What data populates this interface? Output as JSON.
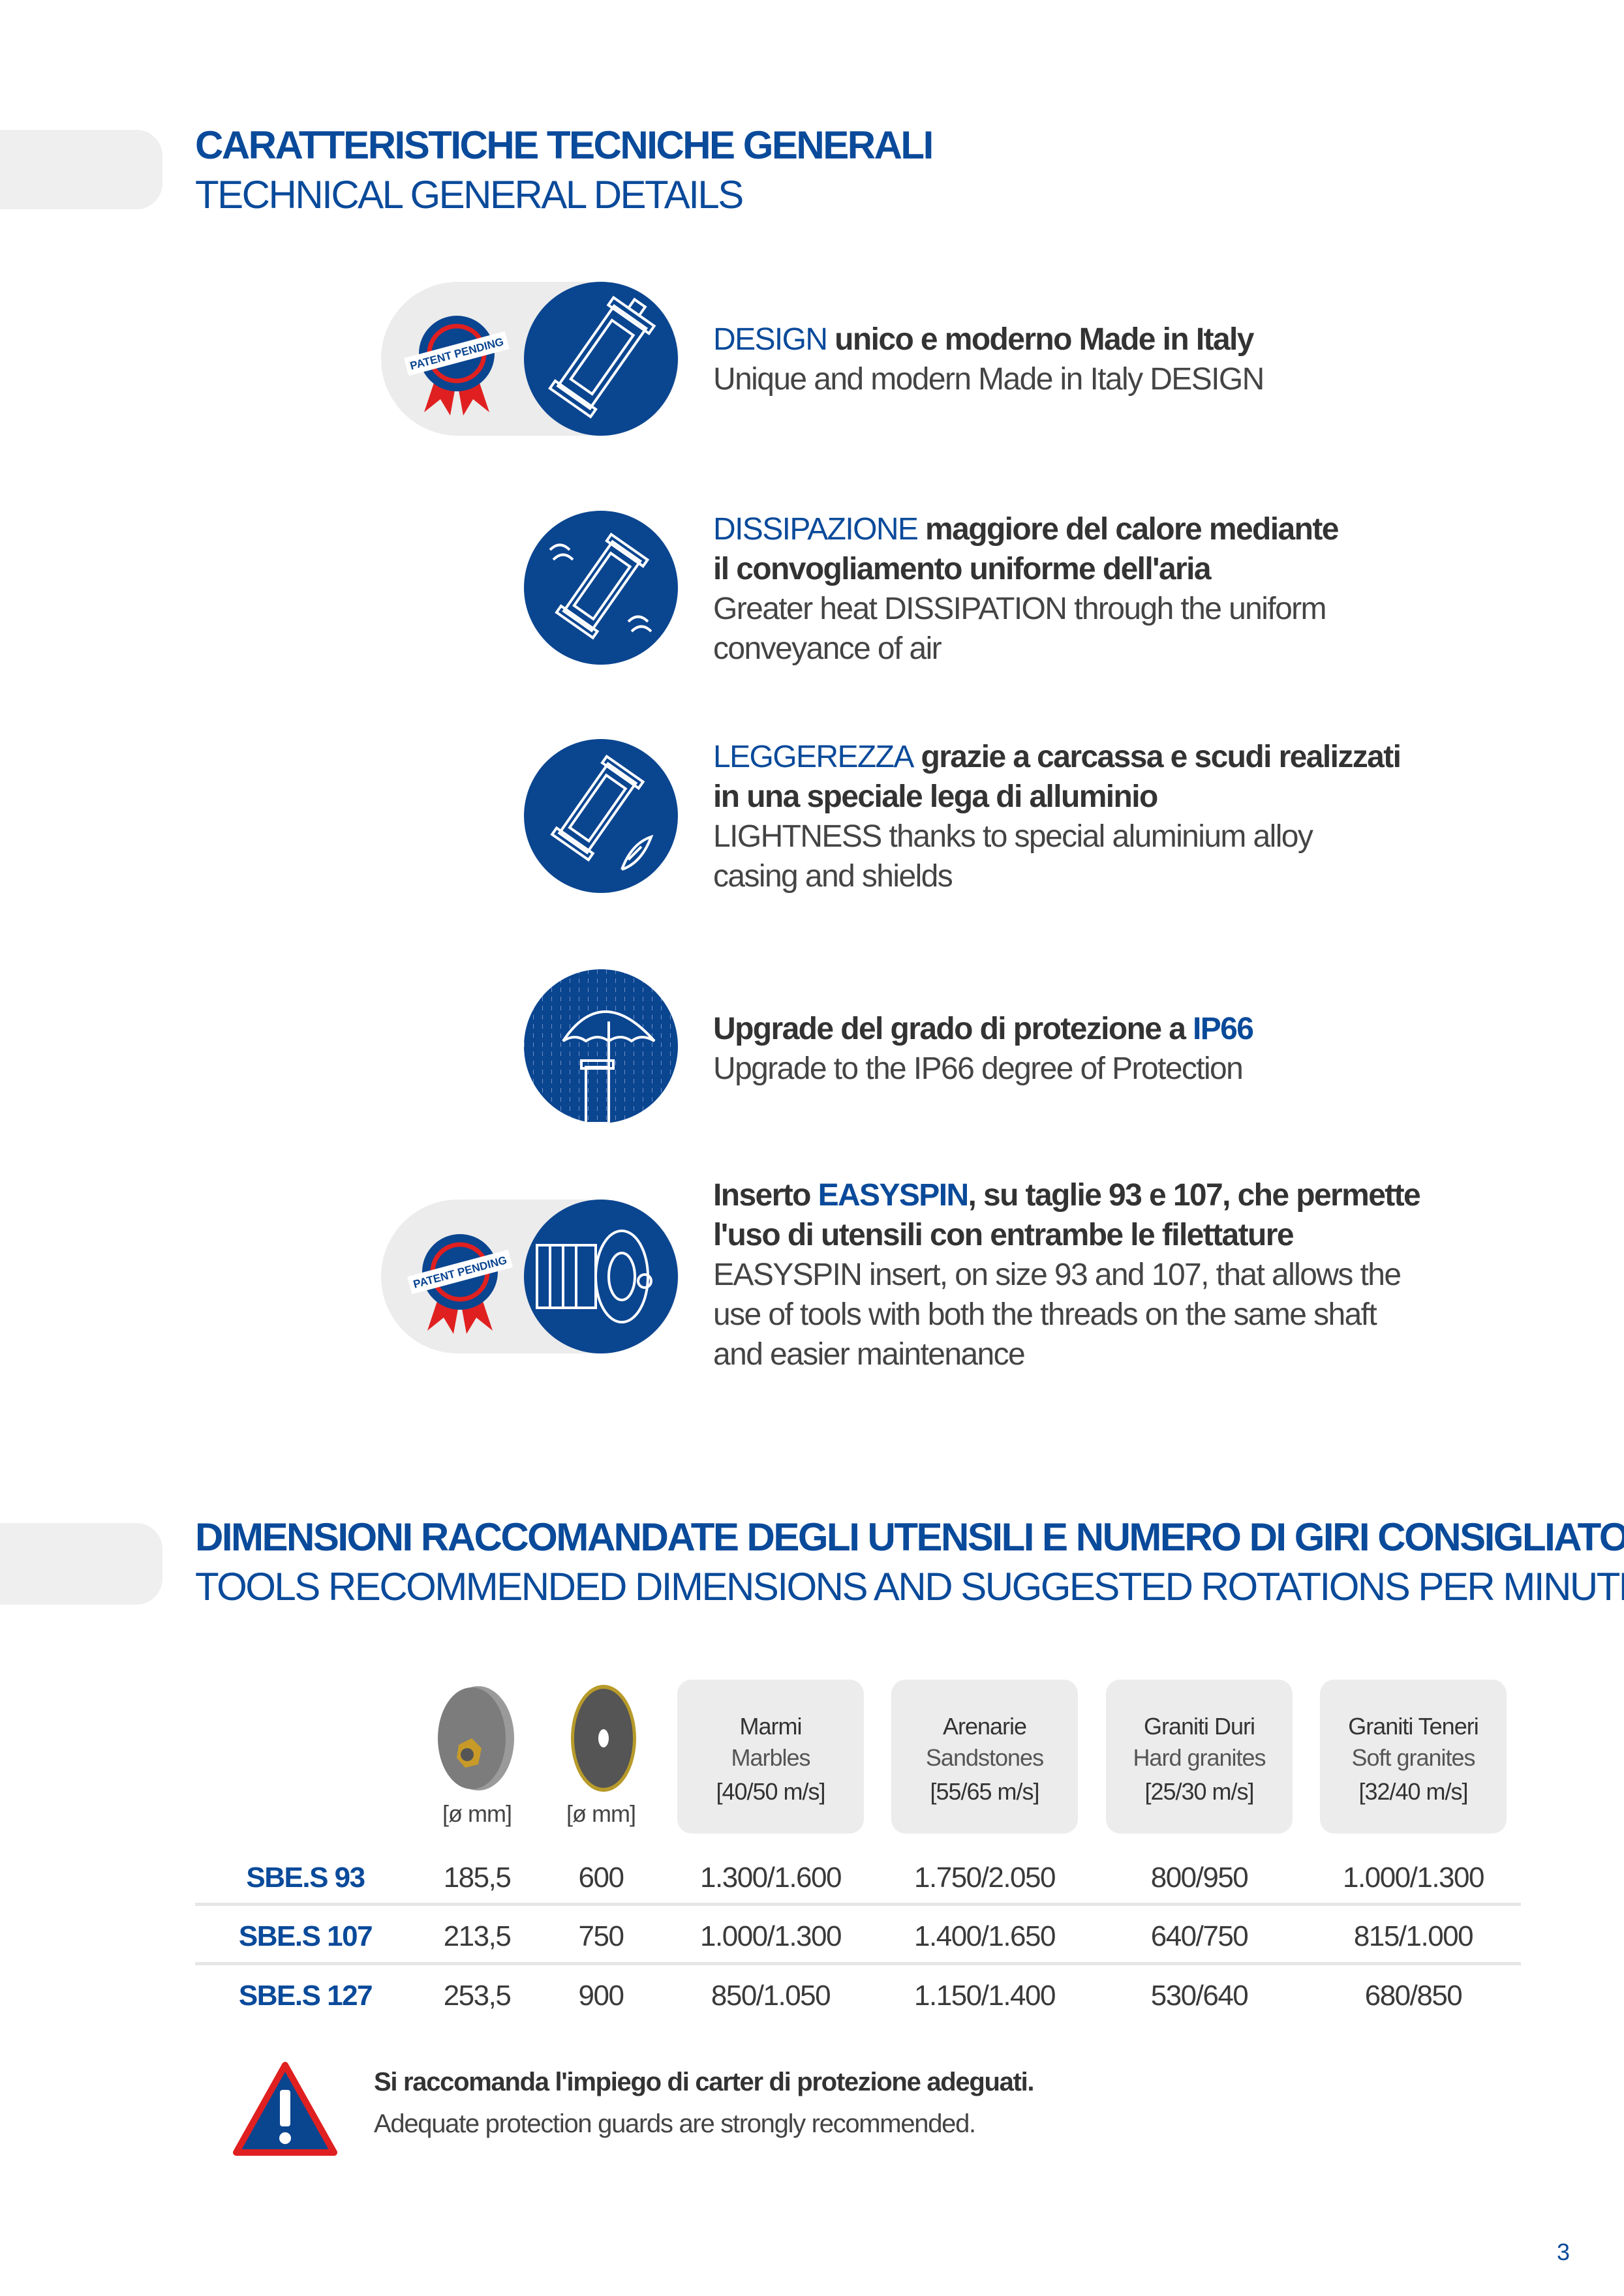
{
  "section1": {
    "title_it": "CARATTERISTICHE TECNICHE GENERALI",
    "title_en": "TECHNICAL GENERAL DETAILS"
  },
  "features": [
    {
      "kw": "DESIGN",
      "it_rest": " unico e moderno Made in Italy",
      "it_line2": "",
      "en_lines": [
        "Unique and modern Made in Italy DESIGN"
      ],
      "badge": "PATENT PENDING",
      "icon": "motor-outline-icon"
    },
    {
      "kw": "DISSIPAZIONE",
      "it_rest": " maggiore del calore mediante",
      "it_line2": "il convogliamento uniforme dell'aria",
      "en_lines": [
        "Greater heat DISSIPATION through the uniform",
        "conveyance of air"
      ],
      "icon": "motor-airflow-icon"
    },
    {
      "kw": "LEGGEREZZA",
      "it_rest": " grazie a carcassa e scudi realizzati",
      "it_line2": "in una speciale lega di alluminio",
      "en_lines": [
        "LIGHTNESS thanks to special aluminium alloy",
        "casing and shields"
      ],
      "icon": "motor-feather-icon"
    },
    {
      "it_pre": "Upgrade del grado di protezione a ",
      "kw": "IP66",
      "en_lines": [
        "Upgrade to the IP66 degree of Protection"
      ],
      "icon": "umbrella-rain-icon"
    },
    {
      "it_pre": "Inserto ",
      "kw": "EASYSPIN",
      "it_rest": ", su taglie 93 e 107, che permette",
      "it_line2": "l'uso di utensili con entrambe le filettature",
      "en_lines": [
        "EASYSPIN insert, on size 93 and 107, that allows the",
        "use of tools with both the threads on the same shaft",
        "and easier maintenance"
      ],
      "badge": "PATENT PENDING",
      "icon": "easyspin-shaft-icon"
    }
  ],
  "section2": {
    "title_it": "DIMENSIONI RACCOMANDATE DEGLI UTENSILI E NUMERO DI GIRI CONSIGLIATO",
    "title_en": "TOOLS RECOMMENDED DIMENSIONS AND SUGGESTED ROTATIONS PER MINUTE"
  },
  "table": {
    "unit_cols": [
      "[ø mm]",
      "[ø mm]"
    ],
    "material_cols": [
      {
        "it": "Marmi",
        "en": "Marbles",
        "speed": "[40/50 m/s]"
      },
      {
        "it": "Arenarie",
        "en": "Sandstones",
        "speed": "[55/65 m/s]"
      },
      {
        "it": "Graniti Duri",
        "en": "Hard granites",
        "speed": "[25/30 m/s]"
      },
      {
        "it": "Graniti Teneri",
        "en": "Soft granites",
        "speed": "[32/40 m/s]"
      }
    ],
    "rows": [
      {
        "model": "SBE.S 93",
        "cells": [
          "185,5",
          "600",
          "1.300/1.600",
          "1.750/2.050",
          "800/950",
          "1.000/1.300"
        ]
      },
      {
        "model": "SBE.S 107",
        "cells": [
          "213,5",
          "750",
          "1.000/1.300",
          "1.400/1.650",
          "640/750",
          "815/1.000"
        ]
      },
      {
        "model": "SBE.S 127",
        "cells": [
          "253,5",
          "900",
          "850/1.050",
          "1.150/1.400",
          "530/640",
          "680/850"
        ]
      }
    ]
  },
  "warning": {
    "it": "Si raccomanda l'impiego di carter di protezione adeguati.",
    "en": "Adequate protection guards are strongly recommended."
  },
  "page_number": "3",
  "colors": {
    "brand_blue": "#0a4590",
    "accent_red": "#e02020",
    "panel_gray": "#ececec"
  }
}
